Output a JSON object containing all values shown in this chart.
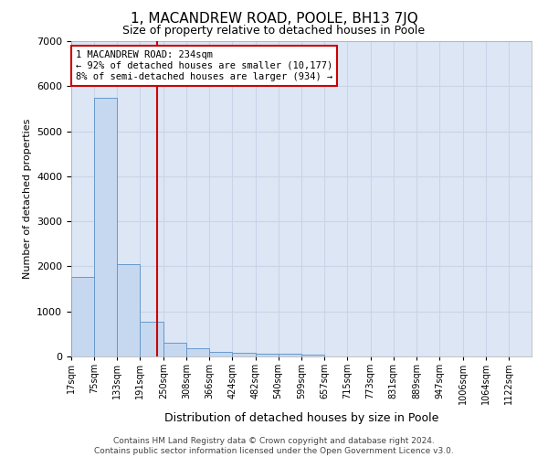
{
  "title": "1, MACANDREW ROAD, POOLE, BH13 7JQ",
  "subtitle": "Size of property relative to detached houses in Poole",
  "xlabel": "Distribution of detached houses by size in Poole",
  "ylabel": "Number of detached properties",
  "annotation_line1": "1 MACANDREW ROAD: 234sqm",
  "annotation_line2": "← 92% of detached houses are smaller (10,177)",
  "annotation_line3": "8% of semi-detached houses are larger (934) →",
  "property_size": 234,
  "bar_color": "#c5d8f0",
  "bar_edge_color": "#6699cc",
  "grid_color": "#c8d4e8",
  "vline_color": "#cc0000",
  "annotation_box_color": "#cc0000",
  "background_color": "#dde6f5",
  "bin_edges": [
    17,
    75,
    133,
    191,
    250,
    308,
    366,
    424,
    482,
    540,
    599,
    657,
    715,
    773,
    831,
    889,
    947,
    1006,
    1064,
    1122,
    1180
  ],
  "bin_counts": [
    1770,
    5750,
    2050,
    775,
    310,
    175,
    105,
    80,
    65,
    55,
    50,
    0,
    0,
    0,
    0,
    0,
    0,
    0,
    0,
    0
  ],
  "ylim": [
    0,
    7000
  ],
  "yticks": [
    0,
    1000,
    2000,
    3000,
    4000,
    5000,
    6000,
    7000
  ],
  "footer_line1": "Contains HM Land Registry data © Crown copyright and database right 2024.",
  "footer_line2": "Contains public sector information licensed under the Open Government Licence v3.0."
}
